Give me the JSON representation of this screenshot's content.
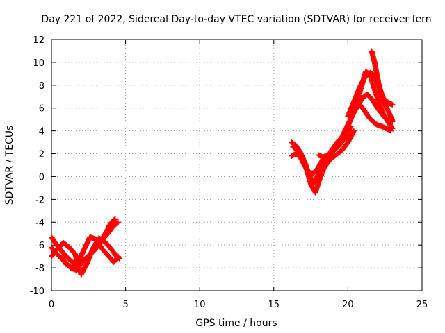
{
  "chart_data": {
    "type": "scatter",
    "title": "Day 221 of 2022, Sidereal Day-to-day VTEC variation (SDTVAR) for receiver fern",
    "xlabel": "GPS time / hours",
    "ylabel": "SDTVAR / TECUs",
    "xlim": [
      0,
      25
    ],
    "ylim": [
      -10,
      12
    ],
    "x_ticks": [
      0,
      5,
      10,
      15,
      20,
      25
    ],
    "y_ticks": [
      -10,
      -8,
      -6,
      -4,
      -2,
      0,
      2,
      4,
      6,
      8,
      10,
      12
    ],
    "x_tick_labels": [
      "0",
      "5",
      "10",
      "15",
      "20",
      "25"
    ],
    "y_tick_labels": [
      "-10",
      "-8",
      "-6",
      "-4",
      "-2",
      "0",
      "2",
      "4",
      "6",
      "8",
      "10",
      "12"
    ],
    "grid": true,
    "marker": "+",
    "color": "#ff0000",
    "series": [
      {
        "x": [
          0.0,
          0.3,
          0.6,
          1.0,
          1.4,
          1.8,
          2.2,
          2.6,
          3.0,
          3.4,
          3.8,
          4.2,
          4.5
        ],
        "y": [
          -5.3,
          -5.9,
          -6.4,
          -7.0,
          -7.5,
          -7.8,
          -7.3,
          -6.8,
          -6.2,
          -5.6,
          -5.0,
          -4.3,
          -4.0
        ]
      },
      {
        "x": [
          0.0,
          0.3,
          0.7,
          1.0,
          1.3,
          1.7,
          2.0,
          2.4,
          2.8,
          3.2,
          3.6,
          4.0,
          4.3
        ],
        "y": [
          -6.2,
          -6.7,
          -7.2,
          -7.6,
          -8.0,
          -8.2,
          -7.6,
          -7.1,
          -6.6,
          -6.0,
          -5.1,
          -4.1,
          -3.7
        ]
      },
      {
        "x": [
          0.0,
          0.3,
          0.8,
          1.2,
          1.6,
          2.0,
          2.4,
          2.8,
          3.2,
          3.6,
          4.0,
          4.4,
          4.6
        ],
        "y": [
          -7.0,
          -6.5,
          -5.8,
          -6.2,
          -6.8,
          -8.6,
          -7.6,
          -6.3,
          -5.4,
          -5.7,
          -6.3,
          -7.0,
          -7.2
        ]
      },
      {
        "x": [
          0.7,
          1.0,
          1.4,
          1.8,
          2.2,
          2.6,
          3.0,
          3.4,
          3.8,
          4.2,
          4.5
        ],
        "y": [
          -7.1,
          -7.7,
          -8.0,
          -7.5,
          -6.4,
          -5.3,
          -5.5,
          -6.3,
          -6.9,
          -7.5,
          -7.0
        ]
      },
      {
        "x": [
          16.2,
          16.5,
          16.8,
          17.1,
          17.4,
          17.7,
          18.0,
          18.3,
          18.6,
          19.0,
          19.4,
          19.8,
          20.2
        ],
        "y": [
          3.0,
          2.7,
          2.1,
          1.2,
          0.1,
          -0.6,
          0.2,
          1.0,
          1.7,
          2.5,
          3.2,
          3.5,
          3.3
        ]
      },
      {
        "x": [
          16.3,
          16.6,
          16.9,
          17.2,
          17.5,
          17.8,
          18.1,
          18.4,
          18.8,
          19.2,
          19.6,
          20.0,
          20.4
        ],
        "y": [
          2.6,
          2.3,
          1.8,
          0.7,
          -0.7,
          -1.4,
          -0.2,
          0.8,
          1.5,
          1.9,
          2.3,
          3.0,
          4.0
        ]
      },
      {
        "x": [
          16.2,
          16.5,
          16.8,
          17.1,
          17.4,
          17.7,
          18.0,
          18.3,
          18.6,
          19.0,
          19.4,
          19.8,
          20.2
        ],
        "y": [
          1.8,
          2.0,
          1.7,
          0.9,
          0.3,
          0.3,
          0.8,
          1.5,
          1.8,
          2.2,
          2.7,
          3.4,
          4.4
        ]
      },
      {
        "x": [
          18.0,
          18.3,
          18.6,
          18.9,
          19.2,
          19.5,
          19.8,
          20.1,
          20.4,
          20.7,
          21.0,
          21.3,
          21.6,
          22.0,
          22.4,
          22.8,
          23.0
        ],
        "y": [
          1.9,
          1.7,
          1.8,
          2.1,
          2.6,
          3.2,
          4.0,
          4.8,
          5.6,
          6.3,
          6.9,
          7.2,
          6.8,
          6.0,
          5.3,
          4.9,
          4.8
        ]
      },
      {
        "x": [
          19.4,
          19.7,
          20.0,
          20.3,
          20.6,
          20.9,
          21.2,
          21.5,
          21.8,
          22.1,
          22.4,
          22.8,
          23.0
        ],
        "y": [
          2.8,
          3.6,
          4.4,
          5.4,
          6.6,
          7.8,
          9.2,
          8.9,
          7.6,
          6.5,
          5.4,
          4.6,
          4.2
        ]
      },
      {
        "x": [
          20.0,
          20.3,
          20.6,
          20.9,
          21.2,
          21.5,
          21.8,
          22.1,
          22.4,
          22.8,
          23.0
        ],
        "y": [
          5.3,
          6.2,
          7.2,
          8.1,
          8.8,
          9.1,
          8.8,
          7.9,
          6.8,
          6.4,
          6.3
        ]
      },
      {
        "x": [
          21.6,
          21.8,
          22.0,
          22.2,
          22.4,
          22.8,
          23.0
        ],
        "y": [
          11.0,
          10.0,
          8.6,
          7.4,
          6.6,
          5.5,
          4.9
        ]
      },
      {
        "x": [
          20.2,
          20.5,
          20.8,
          21.1,
          21.4,
          21.7,
          22.0,
          22.3,
          22.6,
          22.9
        ],
        "y": [
          6.0,
          6.5,
          6.3,
          5.8,
          5.2,
          4.8,
          4.5,
          4.4,
          4.2,
          4.0
        ]
      }
    ]
  }
}
